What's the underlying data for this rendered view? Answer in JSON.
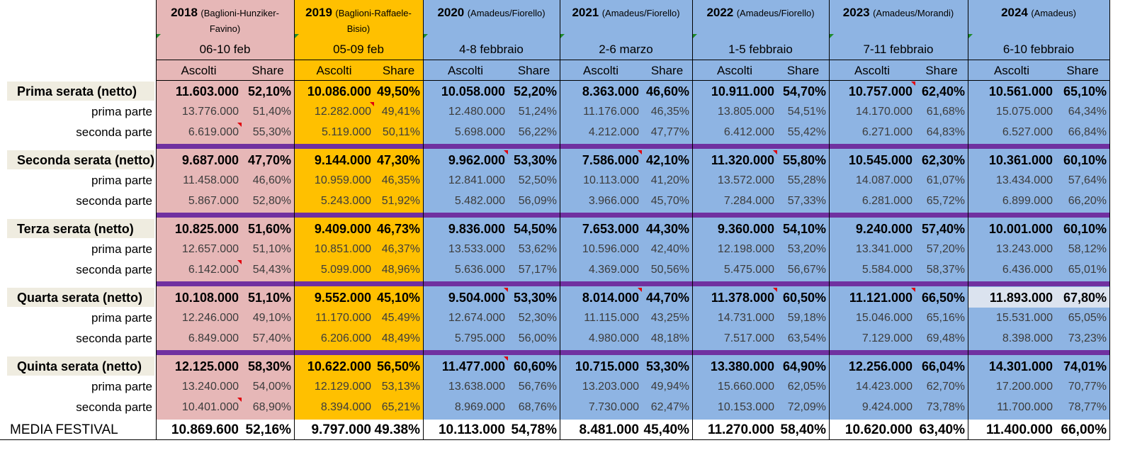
{
  "colors": {
    "col_2018": "#e6b7b7",
    "col_2019": "#ffc000",
    "col_blue": "#8eb4e3",
    "label_bg": "#efece0",
    "separator": "#7030a0",
    "highlight_2024": "#dbe3ef"
  },
  "columns": [
    {
      "year": "2018",
      "hosts": "(Baglioni-Hunziker-Favino)",
      "dates": "06-10 feb"
    },
    {
      "year": "2019",
      "hosts": "(Baglioni-Raffaele-Bisio)",
      "dates": "05-09 feb"
    },
    {
      "year": "2020",
      "hosts": "(Amadeus/Fiorello)",
      "dates": "4-8 febbraio"
    },
    {
      "year": "2021",
      "hosts": "(Amadeus/Fiorello)",
      "dates": "2-6 marzo"
    },
    {
      "year": "2022",
      "hosts": "(Amadeus/Fiorello)",
      "dates": "1-5 febbraio"
    },
    {
      "year": "2023",
      "hosts": "(Amadeus/Morandi)",
      "dates": "7-11 febbraio"
    },
    {
      "year": "2024",
      "hosts": "(Amadeus)",
      "dates": "6-10 febbraio"
    }
  ],
  "subheaders": {
    "ascolti": "Ascolti",
    "share": "Share"
  },
  "sections": [
    {
      "label": "Prima serata (netto)",
      "main": [
        [
          "11.603.000",
          "52,10%"
        ],
        [
          "10.086.000",
          "49,50%"
        ],
        [
          "10.058.000",
          "52,20%"
        ],
        [
          "8.363.000",
          "46,60%"
        ],
        [
          "10.911.000",
          "54,70%"
        ],
        [
          "10.757.000",
          "62,40%"
        ],
        [
          "10.561.000",
          "65,10%"
        ]
      ],
      "prima_label": "prima parte",
      "prima": [
        [
          "13.776.000",
          "51,40%"
        ],
        [
          "12.282.000",
          "49,41%"
        ],
        [
          "12.480.000",
          "51,24%"
        ],
        [
          "11.176.000",
          "46,35%"
        ],
        [
          "13.805.000",
          "54,51%"
        ],
        [
          "14.170.000",
          "61,68%"
        ],
        [
          "15.075.000",
          "64,34%"
        ]
      ],
      "seconda_label": "seconda parte",
      "seconda": [
        [
          "6.619.000",
          "55,30%"
        ],
        [
          "5.119.000",
          "50,11%"
        ],
        [
          "5.698.000",
          "56,22%"
        ],
        [
          "4.212.000",
          "47,77%"
        ],
        [
          "6.412.000",
          "55,42%"
        ],
        [
          "6.271.000",
          "64,83%"
        ],
        [
          "6.527.000",
          "66,84%"
        ]
      ]
    },
    {
      "label": "Seconda serata (netto)",
      "main": [
        [
          "9.687.000",
          "47,70%"
        ],
        [
          "9.144.000",
          "47,30%"
        ],
        [
          "9.962.000",
          "53,30%"
        ],
        [
          "7.586.000",
          "42,10%"
        ],
        [
          "11.320.000",
          "55,80%"
        ],
        [
          "10.545.000",
          "62,30%"
        ],
        [
          "10.361.000",
          "60,10%"
        ]
      ],
      "prima_label": "prima parte",
      "prima": [
        [
          "11.458.000",
          "46,60%"
        ],
        [
          "10.959.000",
          "46,35%"
        ],
        [
          "12.841.000",
          "52,50%"
        ],
        [
          "10.113.000",
          "41,20%"
        ],
        [
          "13.572.000",
          "55,28%"
        ],
        [
          "14.087.000",
          "61,07%"
        ],
        [
          "13.434.000",
          "57,64%"
        ]
      ],
      "seconda_label": "seconda parte",
      "seconda": [
        [
          "5.867.000",
          "52,80%"
        ],
        [
          "5.243.000",
          "51,92%"
        ],
        [
          "5.482.000",
          "56,09%"
        ],
        [
          "3.966.000",
          "45,70%"
        ],
        [
          "7.284.000",
          "57,33%"
        ],
        [
          "6.281.000",
          "65,72%"
        ],
        [
          "6.899.000",
          "66,20%"
        ]
      ]
    },
    {
      "label": "Terza serata (netto)",
      "main": [
        [
          "10.825.000",
          "51,60%"
        ],
        [
          "9.409.000",
          "46,73%"
        ],
        [
          "9.836.000",
          "54,50%"
        ],
        [
          "7.653.000",
          "44,30%"
        ],
        [
          "9.360.000",
          "54,10%"
        ],
        [
          "9.240.000",
          "57,40%"
        ],
        [
          "10.001.000",
          "60,10%"
        ]
      ],
      "prima_label": "prima parte",
      "prima": [
        [
          "12.657.000",
          "51,10%"
        ],
        [
          "10.851.000",
          "46,37%"
        ],
        [
          "13.533.000",
          "53,62%"
        ],
        [
          "10.596.000",
          "42,40%"
        ],
        [
          "12.198.000",
          "53,20%"
        ],
        [
          "13.341.000",
          "57,20%"
        ],
        [
          "13.243.000",
          "58,12%"
        ]
      ],
      "seconda_label": "seconda parte",
      "seconda": [
        [
          "6.142.000",
          "54,43%"
        ],
        [
          "5.099.000",
          "48,96%"
        ],
        [
          "5.636.000",
          "57,17%"
        ],
        [
          "4.369.000",
          "50,56%"
        ],
        [
          "5.475.000",
          "56,67%"
        ],
        [
          "5.584.000",
          "58,37%"
        ],
        [
          "6.436.000",
          "65,01%"
        ]
      ]
    },
    {
      "label": "Quarta serata (netto)",
      "main": [
        [
          "10.108.000",
          "51,10%"
        ],
        [
          "9.552.000",
          "45,10%"
        ],
        [
          "9.504.000",
          "53,30%"
        ],
        [
          "8.014.000",
          "44,70%"
        ],
        [
          "11.378.000",
          "60,50%"
        ],
        [
          "11.121.000",
          "66,50%"
        ],
        [
          "11.893.000",
          "67,80%"
        ]
      ],
      "prima_label": "prima parte",
      "prima": [
        [
          "12.246.000",
          "49,10%"
        ],
        [
          "11.170.000",
          "45.49%"
        ],
        [
          "12.674.000",
          "52,30%"
        ],
        [
          "11.115.000",
          "43,25%"
        ],
        [
          "14.731.000",
          "59,18%"
        ],
        [
          "15.046.000",
          "65,16%"
        ],
        [
          "15.531.000",
          "65,05%"
        ]
      ],
      "seconda_label": "seconda parte",
      "seconda": [
        [
          "6.849.000",
          "57,40%"
        ],
        [
          "6.206.000",
          "48,49%"
        ],
        [
          "5.795.000",
          "56,00%"
        ],
        [
          "4.980.000",
          "48,18%"
        ],
        [
          "7.517.000",
          "63,54%"
        ],
        [
          "7.129.000",
          "69,48%"
        ],
        [
          "8.398.000",
          "73,23%"
        ]
      ]
    },
    {
      "label": "Quinta serata (netto)",
      "main": [
        [
          "12.125.000",
          "58,30%"
        ],
        [
          "10.622.000",
          "56,50%"
        ],
        [
          "11.477.000",
          "60,60%"
        ],
        [
          "10.715.000",
          "53,30%"
        ],
        [
          "13.380.000",
          "64,90%"
        ],
        [
          "12.256.000",
          "66,04%"
        ],
        [
          "14.301.000",
          "74,01%"
        ]
      ],
      "prima_label": "prima parte",
      "prima": [
        [
          "13.240.000",
          "54,00%"
        ],
        [
          "12.129.000",
          "53,13%"
        ],
        [
          "13.638.000",
          "56,76%"
        ],
        [
          "13.203.000",
          "49,94%"
        ],
        [
          "15.660.000",
          "62,05%"
        ],
        [
          "14.423.000",
          "62,70%"
        ],
        [
          "17.200.000",
          "70,77%"
        ]
      ],
      "seconda_label": "seconda parte",
      "seconda": [
        [
          "10.401.000",
          "68,90%"
        ],
        [
          "8.394.000",
          "65,21%"
        ],
        [
          "8.969.000",
          "68,76%"
        ],
        [
          "7.730.000",
          "62,47%"
        ],
        [
          "10.153.000",
          "72,09%"
        ],
        [
          "9.424.000",
          "73,78%"
        ],
        [
          "11.700.000",
          "78,77%"
        ]
      ]
    }
  ],
  "media": {
    "label": "MEDIA FESTIVAL",
    "values": [
      [
        "10.869.600",
        "52,16%"
      ],
      [
        "9.797.000",
        "49.38%"
      ],
      [
        "10.113.000",
        "54,78%"
      ],
      [
        "8.481.000",
        "45,40%"
      ],
      [
        "11.270.000",
        "58,40%"
      ],
      [
        "10.620.000",
        "63,40%"
      ],
      [
        "11.400.000",
        "66,00%"
      ]
    ]
  }
}
